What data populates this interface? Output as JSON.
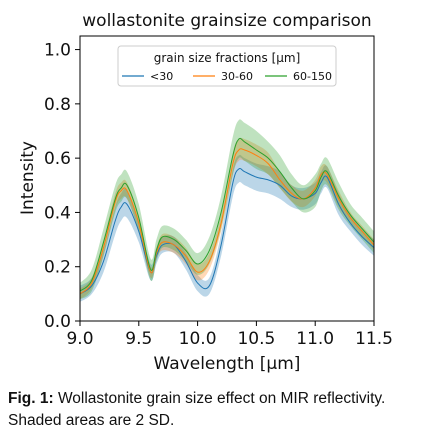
{
  "figure": {
    "caption_label": "Fig. 1:",
    "caption_text": " Wollastonite grain size effect on MIR reflectivity. Shaded areas are 2 SD."
  },
  "chart_data": {
    "type": "line",
    "title": "wollastonite grainsize comparison",
    "xlabel": "Wavelength [µm]",
    "ylabel": "Intensity",
    "xlim": [
      9.0,
      11.5
    ],
    "ylim": [
      0.0,
      1.05
    ],
    "xticks": [
      "9.0",
      "9.5",
      "10.0",
      "10.5",
      "11.0",
      "11.5"
    ],
    "yticks": [
      "0.0",
      "0.2",
      "0.4",
      "0.6",
      "0.8",
      "1.0"
    ],
    "xtick_values": [
      9.0,
      9.5,
      10.0,
      10.5,
      11.0,
      11.5
    ],
    "ytick_values": [
      0.0,
      0.2,
      0.4,
      0.6,
      0.8,
      1.0
    ],
    "grid": false,
    "legend": {
      "title": "grain size fractions [µm]",
      "placement": "upper-center",
      "ncol": 3
    },
    "shaded_band": "2 SD",
    "x": [
      9.0,
      9.1,
      9.2,
      9.3,
      9.35,
      9.4,
      9.5,
      9.6,
      9.65,
      9.7,
      9.8,
      9.9,
      10.0,
      10.1,
      10.2,
      10.3,
      10.35,
      10.4,
      10.5,
      10.6,
      10.7,
      10.8,
      10.9,
      11.0,
      11.05,
      11.1,
      11.2,
      11.3,
      11.4,
      11.5
    ],
    "series": [
      {
        "name": "<30",
        "color": "#1f77b4",
        "values": [
          0.1,
          0.13,
          0.22,
          0.37,
          0.42,
          0.43,
          0.33,
          0.18,
          0.24,
          0.28,
          0.28,
          0.22,
          0.14,
          0.13,
          0.28,
          0.51,
          0.56,
          0.55,
          0.53,
          0.52,
          0.5,
          0.46,
          0.45,
          0.47,
          0.51,
          0.53,
          0.43,
          0.36,
          0.31,
          0.27
        ],
        "sd": [
          0.03,
          0.03,
          0.04,
          0.05,
          0.05,
          0.05,
          0.04,
          0.03,
          0.03,
          0.03,
          0.03,
          0.03,
          0.03,
          0.03,
          0.04,
          0.05,
          0.05,
          0.05,
          0.05,
          0.05,
          0.05,
          0.04,
          0.04,
          0.04,
          0.04,
          0.04,
          0.04,
          0.03,
          0.03,
          0.03
        ]
      },
      {
        "name": "30-60",
        "color": "#ff7f0e",
        "values": [
          0.1,
          0.14,
          0.27,
          0.44,
          0.48,
          0.48,
          0.36,
          0.18,
          0.25,
          0.29,
          0.28,
          0.24,
          0.18,
          0.22,
          0.36,
          0.58,
          0.63,
          0.63,
          0.61,
          0.58,
          0.52,
          0.47,
          0.45,
          0.49,
          0.54,
          0.54,
          0.45,
          0.38,
          0.33,
          0.28
        ],
        "sd": [
          0.02,
          0.02,
          0.03,
          0.03,
          0.03,
          0.03,
          0.03,
          0.02,
          0.02,
          0.03,
          0.03,
          0.03,
          0.03,
          0.03,
          0.03,
          0.04,
          0.04,
          0.04,
          0.04,
          0.04,
          0.03,
          0.03,
          0.03,
          0.03,
          0.03,
          0.03,
          0.03,
          0.02,
          0.02,
          0.02
        ]
      },
      {
        "name": "60-150",
        "color": "#2ca02c",
        "values": [
          0.11,
          0.15,
          0.29,
          0.45,
          0.49,
          0.5,
          0.38,
          0.19,
          0.26,
          0.31,
          0.3,
          0.26,
          0.21,
          0.26,
          0.4,
          0.61,
          0.67,
          0.66,
          0.63,
          0.6,
          0.55,
          0.49,
          0.45,
          0.48,
          0.53,
          0.55,
          0.46,
          0.39,
          0.34,
          0.29
        ],
        "sd": [
          0.03,
          0.04,
          0.05,
          0.05,
          0.05,
          0.05,
          0.05,
          0.04,
          0.04,
          0.04,
          0.04,
          0.04,
          0.04,
          0.05,
          0.06,
          0.07,
          0.07,
          0.07,
          0.07,
          0.06,
          0.06,
          0.05,
          0.05,
          0.06,
          0.05,
          0.05,
          0.05,
          0.04,
          0.04,
          0.04
        ]
      }
    ]
  }
}
